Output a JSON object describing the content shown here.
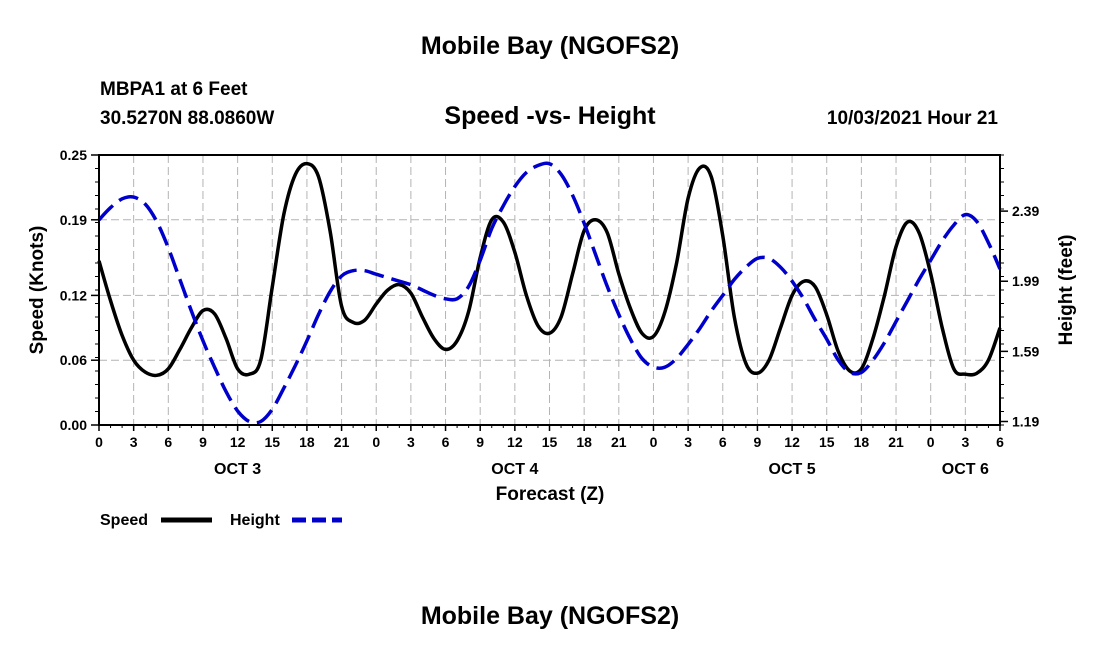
{
  "header": {
    "title": "Mobile Bay (NGOFS2)",
    "station": "MBPA1 at 6 Feet",
    "coords": "30.5270N  88.0860W",
    "plot_title": "Speed -vs- Height",
    "timestamp": "10/03/2021 Hour 21"
  },
  "footer": {
    "title": "Mobile Bay (NGOFS2)"
  },
  "colors": {
    "speed": "#000000",
    "height": "#0000cc",
    "grid": "#b4b4b4"
  },
  "chart_data": {
    "type": "line",
    "title": "Speed -vs- Height",
    "xlabel": "Forecast (Z)",
    "ylabel_left": "Speed (Knots)",
    "ylabel_right": "Height (feet)",
    "x_unit": "hours from 10/03/2021 00Z",
    "xlim": [
      0,
      78
    ],
    "ylim_left": [
      0.0,
      0.25
    ],
    "ylim_right": [
      1.17,
      2.71
    ],
    "x_ticks": [
      0,
      3,
      6,
      9,
      12,
      15,
      18,
      21,
      24,
      27,
      30,
      33,
      36,
      39,
      42,
      45,
      48,
      51,
      54,
      57,
      60,
      63,
      66,
      69,
      72,
      75,
      78
    ],
    "x_tick_labels": [
      "0",
      "3",
      "6",
      "9",
      "12",
      "15",
      "18",
      "21",
      "0",
      "3",
      "6",
      "9",
      "12",
      "15",
      "18",
      "21",
      "0",
      "3",
      "6",
      "9",
      "12",
      "15",
      "18",
      "21",
      "0",
      "3",
      "6"
    ],
    "y_left_ticks": [
      0.0,
      0.06,
      0.12,
      0.19,
      0.25
    ],
    "y_left_tick_labels": [
      "0.00",
      "0.06",
      "0.12",
      "0.19",
      "0.25"
    ],
    "y_right_ticks": [
      1.19,
      1.59,
      1.99,
      2.39
    ],
    "y_right_tick_labels": [
      "1.19",
      "1.59",
      "1.99",
      "2.39"
    ],
    "day_labels": [
      {
        "x": 12,
        "label": "OCT 3"
      },
      {
        "x": 36,
        "label": "OCT 4"
      },
      {
        "x": 60,
        "label": "OCT 5"
      },
      {
        "x": 75,
        "label": "OCT 6"
      }
    ],
    "grid": true,
    "legend": "bottom-left",
    "series": [
      {
        "name": "Speed",
        "axis": "left",
        "style": "solid",
        "x": [
          0,
          1,
          2,
          3,
          4,
          5,
          6,
          7,
          8,
          9,
          10,
          11,
          12,
          13,
          14,
          15,
          16,
          17,
          18,
          19,
          20,
          21,
          22,
          23,
          24,
          25,
          26,
          27,
          28,
          29,
          30,
          31,
          32,
          33,
          34,
          35,
          36,
          37,
          38,
          39,
          40,
          41,
          42,
          43,
          44,
          45,
          46,
          47,
          48,
          49,
          50,
          51,
          52,
          53,
          54,
          55,
          56,
          57,
          58,
          59,
          60,
          61,
          62,
          63,
          64,
          65,
          66,
          67,
          68,
          69,
          70,
          71,
          72,
          73,
          74,
          75,
          76,
          77,
          78
        ],
        "values": [
          0.152,
          0.115,
          0.083,
          0.06,
          0.049,
          0.046,
          0.052,
          0.07,
          0.09,
          0.106,
          0.103,
          0.08,
          0.052,
          0.047,
          0.06,
          0.128,
          0.195,
          0.232,
          0.242,
          0.23,
          0.18,
          0.11,
          0.095,
          0.097,
          0.112,
          0.125,
          0.13,
          0.122,
          0.1,
          0.08,
          0.07,
          0.078,
          0.105,
          0.155,
          0.19,
          0.188,
          0.16,
          0.12,
          0.092,
          0.085,
          0.1,
          0.14,
          0.18,
          0.19,
          0.178,
          0.14,
          0.108,
          0.085,
          0.082,
          0.105,
          0.15,
          0.21,
          0.238,
          0.23,
          0.175,
          0.1,
          0.057,
          0.048,
          0.06,
          0.09,
          0.12,
          0.133,
          0.128,
          0.102,
          0.068,
          0.05,
          0.052,
          0.08,
          0.12,
          0.165,
          0.188,
          0.178,
          0.14,
          0.09,
          0.052,
          0.047,
          0.048,
          0.06,
          0.09
        ]
      },
      {
        "name": "Height",
        "axis": "right",
        "style": "dashed",
        "x": [
          0,
          1,
          2,
          3,
          4,
          5,
          6,
          7,
          8,
          9,
          10,
          11,
          12,
          13,
          14,
          15,
          16,
          17,
          18,
          19,
          20,
          21,
          22,
          23,
          24,
          25,
          26,
          27,
          28,
          29,
          30,
          31,
          32,
          33,
          34,
          35,
          36,
          37,
          38,
          39,
          40,
          41,
          42,
          43,
          44,
          45,
          46,
          47,
          48,
          49,
          50,
          51,
          52,
          53,
          54,
          55,
          56,
          57,
          58,
          59,
          60,
          61,
          62,
          63,
          64,
          65,
          66,
          67,
          68,
          69,
          70,
          71,
          72,
          73,
          74,
          75,
          76,
          77,
          78
        ],
        "values": [
          2.34,
          2.41,
          2.46,
          2.47,
          2.43,
          2.33,
          2.18,
          2.0,
          1.82,
          1.65,
          1.5,
          1.36,
          1.25,
          1.19,
          1.19,
          1.26,
          1.38,
          1.51,
          1.65,
          1.8,
          1.93,
          2.02,
          2.05,
          2.05,
          2.03,
          2.01,
          1.99,
          1.97,
          1.94,
          1.91,
          1.89,
          1.89,
          1.96,
          2.11,
          2.29,
          2.42,
          2.53,
          2.61,
          2.65,
          2.66,
          2.6,
          2.48,
          2.32,
          2.14,
          1.96,
          1.8,
          1.66,
          1.55,
          1.5,
          1.5,
          1.55,
          1.63,
          1.72,
          1.82,
          1.91,
          2.0,
          2.07,
          2.12,
          2.12,
          2.07,
          1.99,
          1.89,
          1.77,
          1.66,
          1.54,
          1.47,
          1.47,
          1.54,
          1.64,
          1.76,
          1.88,
          2.0,
          2.11,
          2.22,
          2.31,
          2.37,
          2.33,
          2.21,
          2.06
        ]
      }
    ]
  }
}
